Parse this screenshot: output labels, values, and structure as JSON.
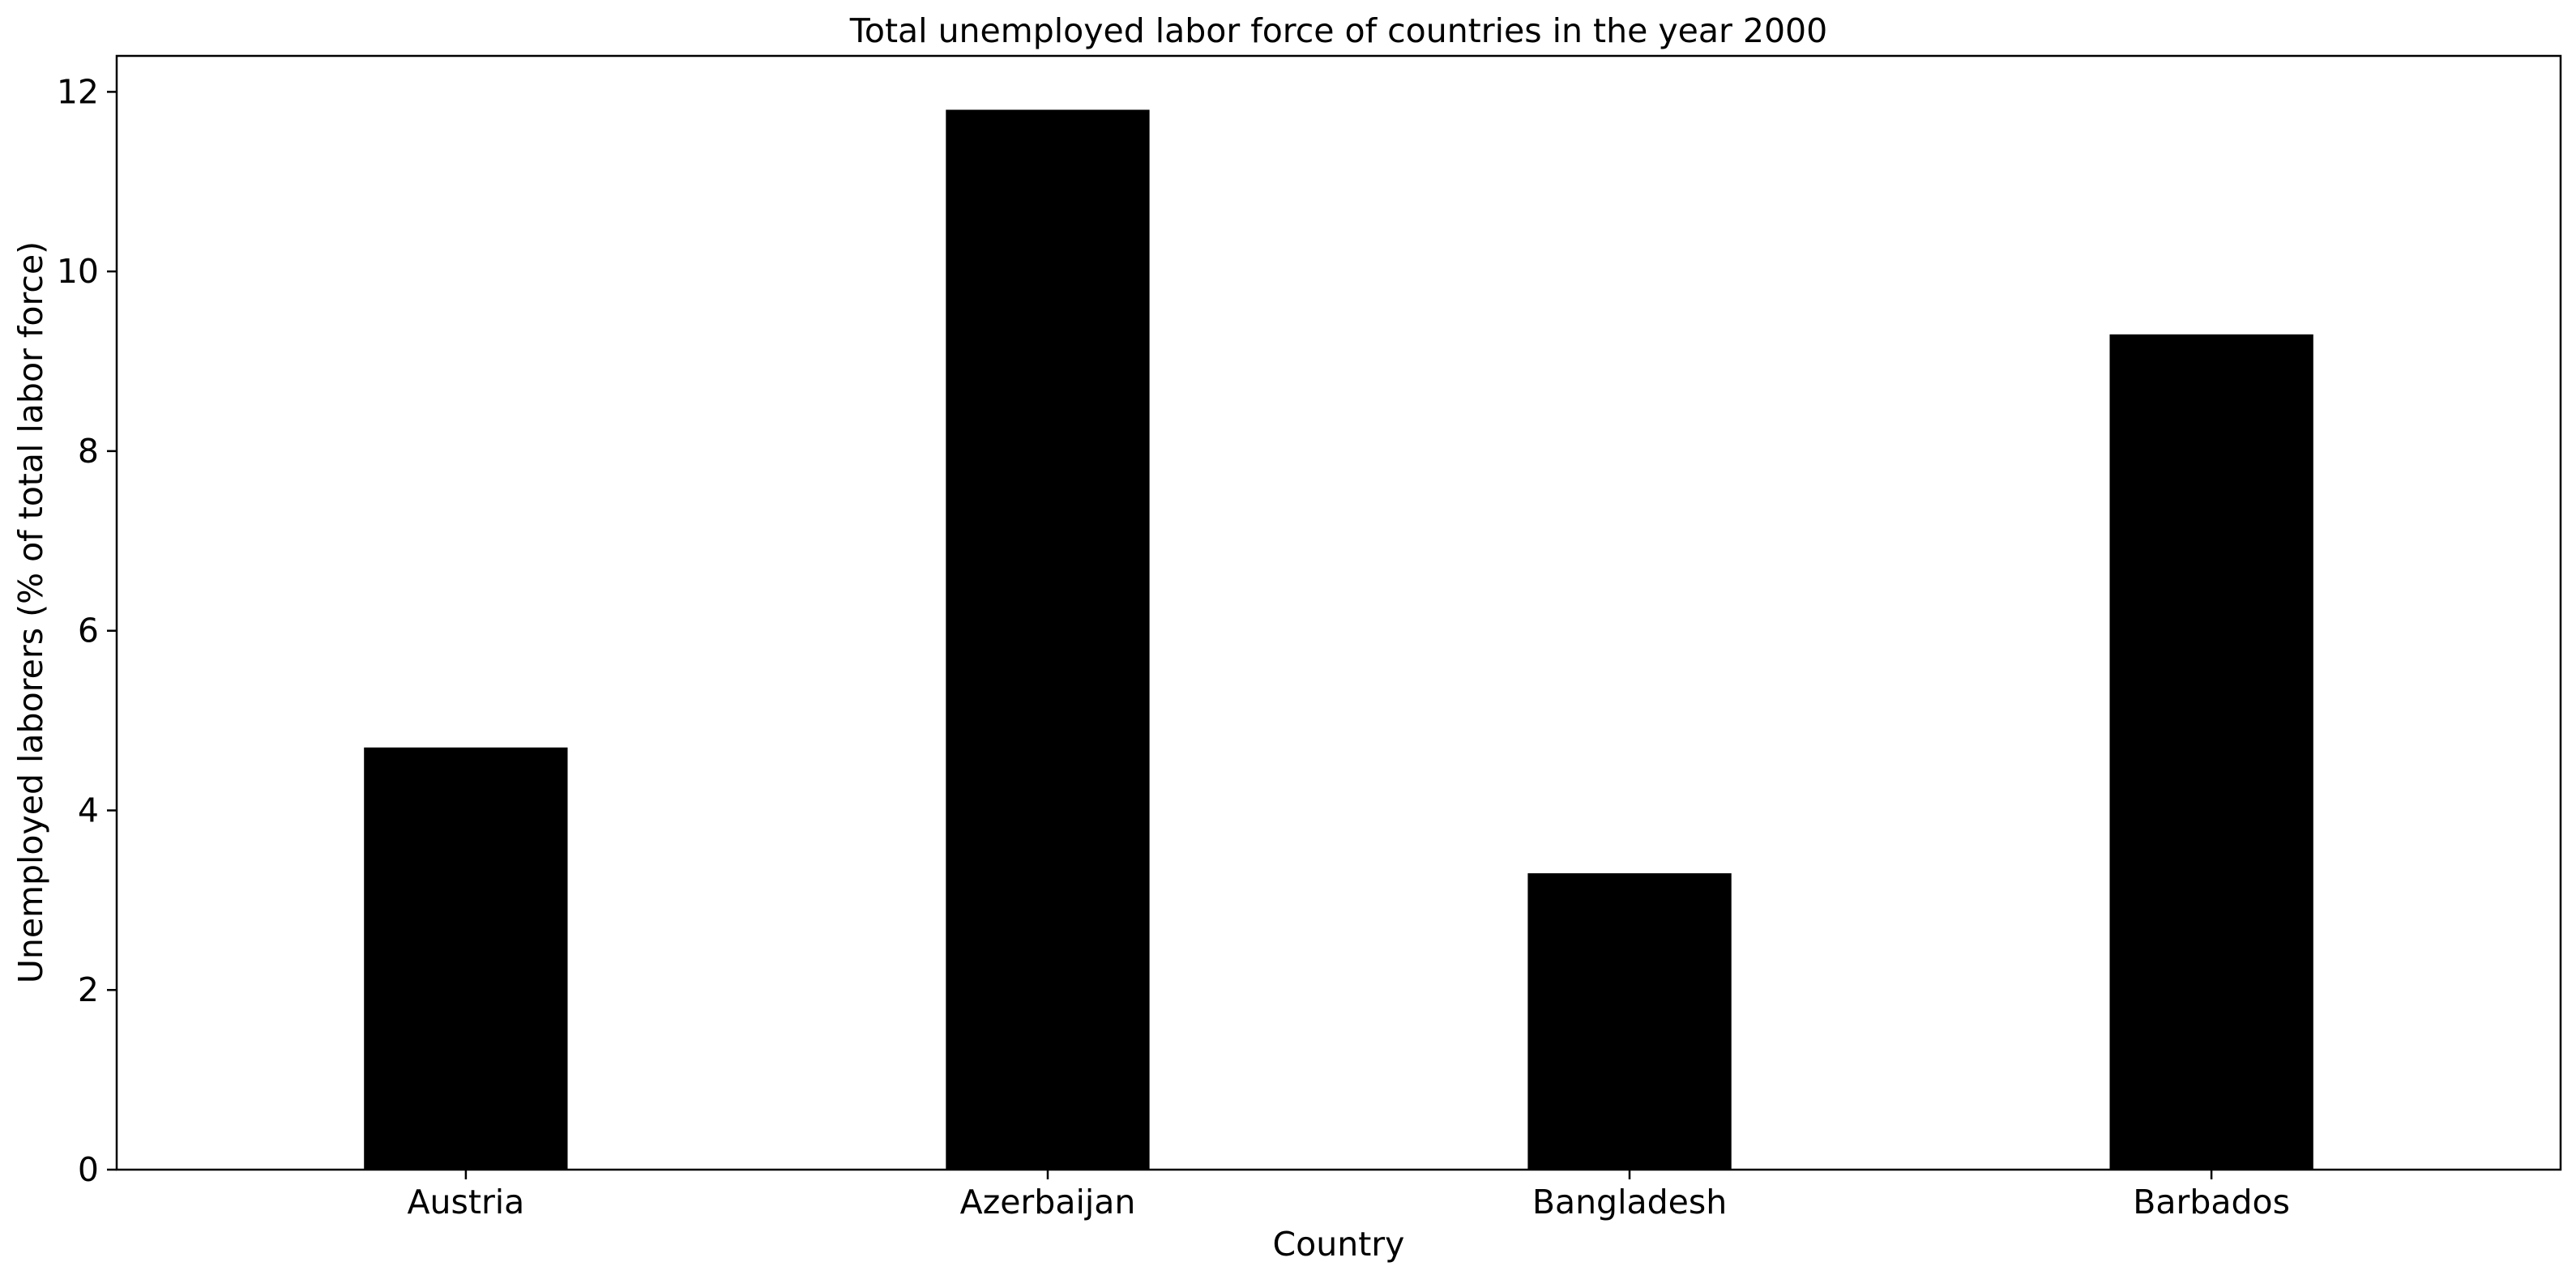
{
  "chart_data": {
    "type": "bar",
    "title": "Total unemployed labor force of countries in the year 2000",
    "xlabel": "Country",
    "ylabel": "Unemployed laborers (% of total labor force)",
    "categories": [
      "Austria",
      "Azerbaijan",
      "Bangladesh",
      "Barbados"
    ],
    "values": [
      4.7,
      11.8,
      3.3,
      9.3
    ],
    "ylim": [
      0,
      12.4
    ],
    "yticks": [
      0,
      2,
      4,
      6,
      8,
      10,
      12
    ],
    "grid": false,
    "legend": "none",
    "bar_color": "#000000"
  }
}
